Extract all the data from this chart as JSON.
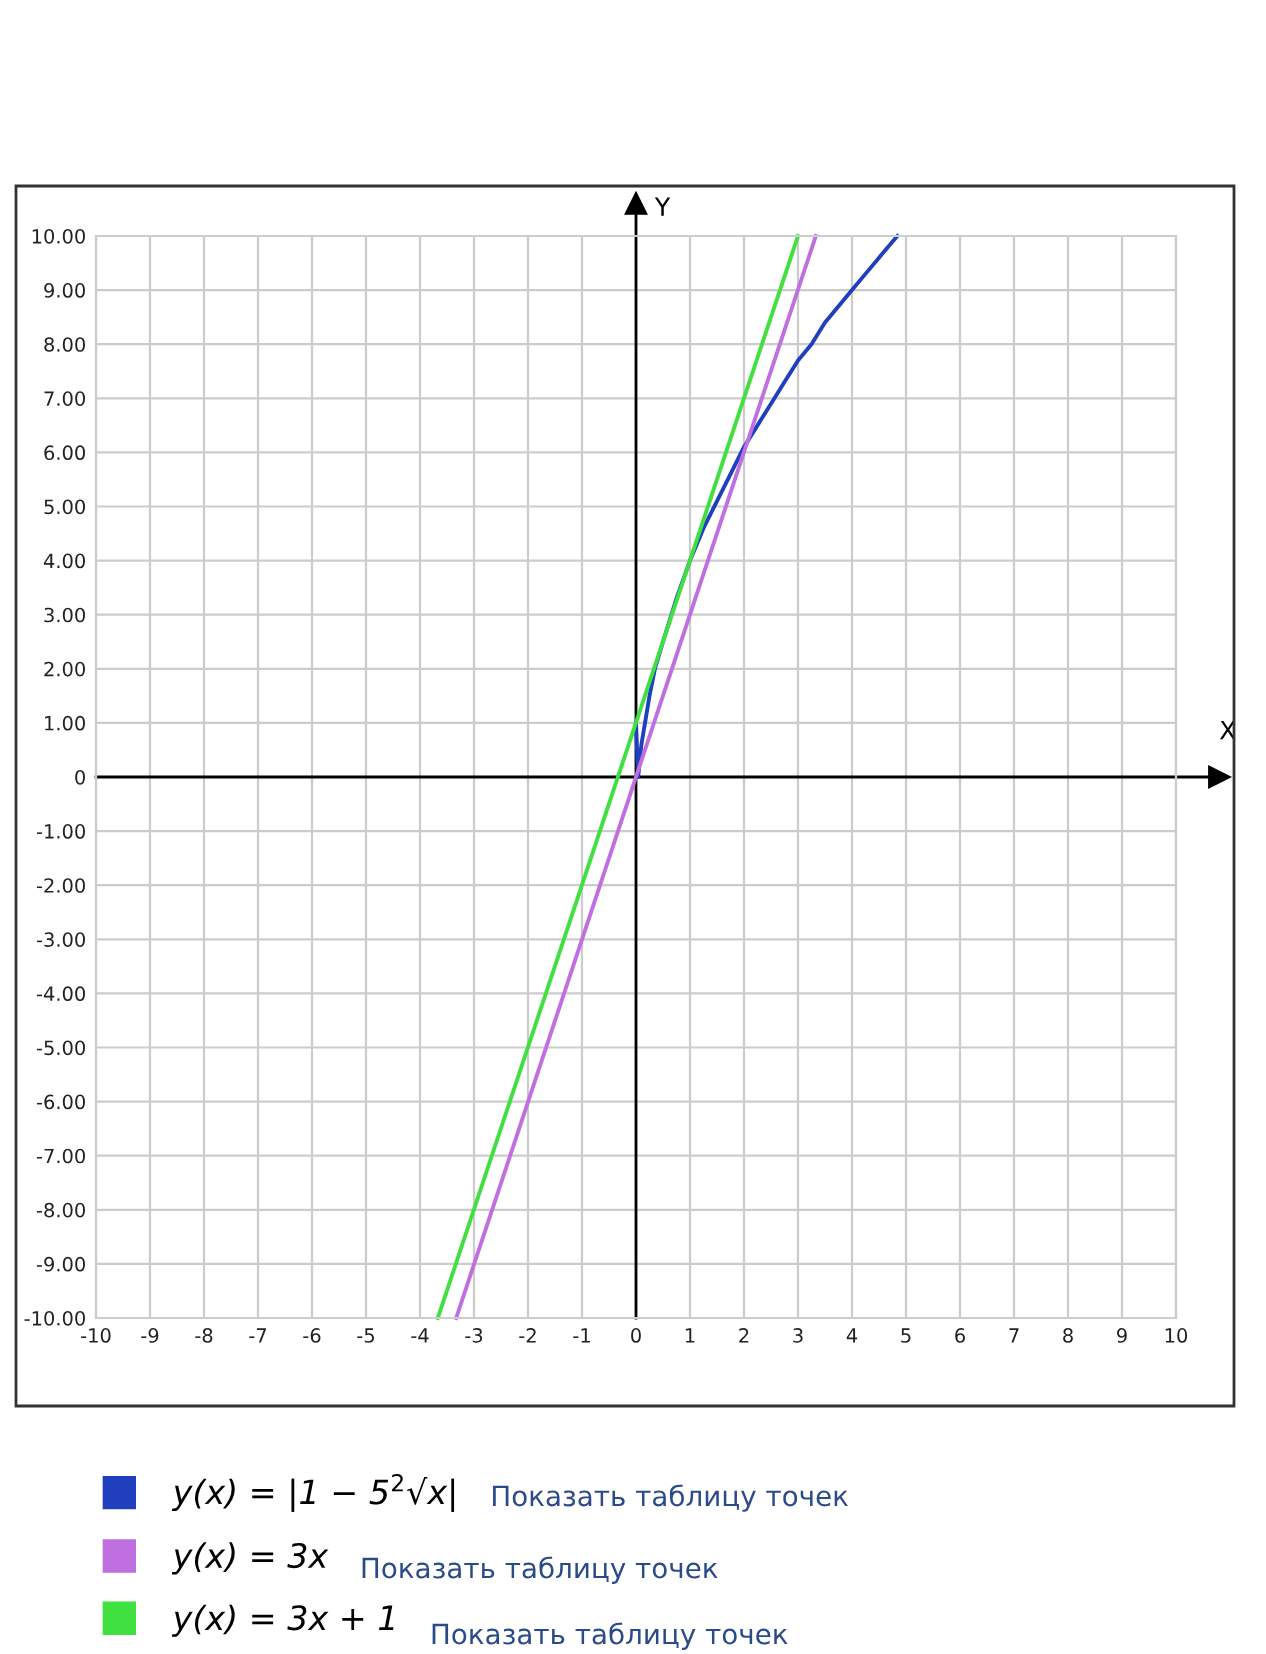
{
  "chart_data": {
    "type": "line",
    "xlabel": "X",
    "ylabel": "Y",
    "xlim": [
      -10,
      10
    ],
    "ylim": [
      -10,
      10
    ],
    "xticks": [
      -10,
      -9,
      -8,
      -7,
      -6,
      -5,
      -4,
      -3,
      -2,
      -1,
      0,
      1,
      2,
      3,
      4,
      5,
      6,
      7,
      8,
      9,
      10
    ],
    "yticks": [
      {
        "value": -10,
        "label": "-10.00"
      },
      {
        "value": -9,
        "label": "-9.00"
      },
      {
        "value": -8,
        "label": "-8.00"
      },
      {
        "value": -7,
        "label": "-7.00"
      },
      {
        "value": -6,
        "label": "-6.00"
      },
      {
        "value": -5,
        "label": "-5.00"
      },
      {
        "value": -4,
        "label": "-4.00"
      },
      {
        "value": -3,
        "label": "-3.00"
      },
      {
        "value": -2,
        "label": "-2.00"
      },
      {
        "value": -1,
        "label": "-1.00"
      },
      0,
      {
        "value": 1,
        "label": "1.00"
      },
      {
        "value": 2,
        "label": "2.00"
      },
      {
        "value": 3,
        "label": "3.00"
      },
      {
        "value": 4,
        "label": "4.00"
      },
      {
        "value": 5,
        "label": "5.00"
      },
      {
        "value": 6,
        "label": "6.00"
      },
      {
        "value": 7,
        "label": "7.00"
      },
      {
        "value": 8,
        "label": "8.00"
      },
      {
        "value": 9,
        "label": "9.00"
      },
      {
        "value": 10,
        "label": "10.00"
      }
    ],
    "grid": true,
    "legend": "bottom",
    "marker": "none",
    "line_style": "solid",
    "series": [
      {
        "name": "y(x) = |1 − 5$^{2}$√x|",
        "color": "#1f3fbf",
        "x": [
          0,
          0.04,
          0.1,
          0.15,
          0.25,
          0.35,
          0.5,
          0.75,
          1,
          1.25,
          1.5,
          1.75,
          2,
          2.25,
          2.5,
          2.75,
          3,
          3.25,
          3.5,
          3.75,
          4,
          4.25,
          4.5,
          4.84
        ],
        "values": [
          1,
          0,
          0.6,
          0.9,
          1.5,
          2,
          2.5,
          3.3,
          4,
          4.6,
          5.1,
          5.6,
          6.1,
          6.5,
          6.9,
          7.3,
          7.7,
          8,
          8.4,
          8.7,
          9,
          9.3,
          9.6,
          10
        ]
      },
      {
        "name": "y(x) = 3x",
        "color": "#bf6fe0",
        "x": [
          -3.33,
          3.33
        ],
        "values": [
          -10,
          10
        ]
      },
      {
        "name": "y(x) = 3x + 1",
        "color": "#3fe03f",
        "x": [
          -3.67,
          3
        ],
        "values": [
          -10,
          10
        ]
      }
    ],
    "annotations": [
      "Показать таблицу точек",
      "Показать таблицу точек",
      "Показать таблицу точек"
    ]
  }
}
